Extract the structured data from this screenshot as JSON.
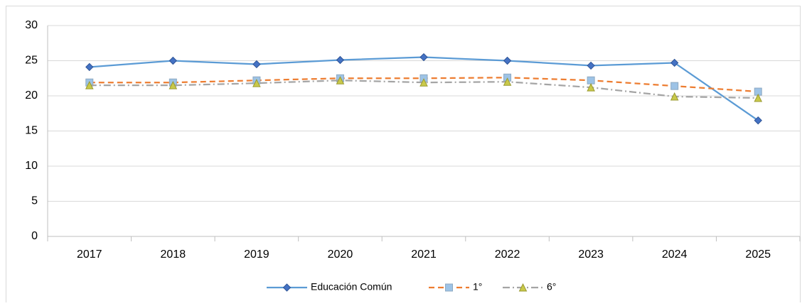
{
  "chart_data": {
    "type": "line",
    "categories": [
      "2017",
      "2018",
      "2019",
      "2020",
      "2021",
      "2022",
      "2023",
      "2024",
      "2025"
    ],
    "series": [
      {
        "name": "Educación Común",
        "color": "#5b9bd5",
        "marker": "diamond",
        "marker_color": "#4472c4",
        "dash": "solid",
        "values": [
          24.1,
          25.0,
          24.5,
          25.1,
          25.5,
          25.0,
          24.3,
          24.7,
          16.5
        ]
      },
      {
        "name": "1°",
        "color": "#ed7d31",
        "marker": "square",
        "marker_color": "#9dc3e6",
        "dash": "dashed",
        "values": [
          21.9,
          21.9,
          22.2,
          22.5,
          22.5,
          22.6,
          22.2,
          21.4,
          20.6
        ]
      },
      {
        "name": "6°",
        "color": "#a5a5a5",
        "marker": "triangle",
        "marker_color": "#c9c94a",
        "dash": "dashdot",
        "values": [
          21.5,
          21.5,
          21.8,
          22.2,
          21.9,
          22.0,
          21.2,
          19.9,
          19.7
        ]
      }
    ],
    "ylim": [
      0,
      30
    ],
    "yticks": [
      0,
      5,
      10,
      15,
      20,
      25,
      30
    ],
    "grid": true,
    "legend": "bottom"
  }
}
